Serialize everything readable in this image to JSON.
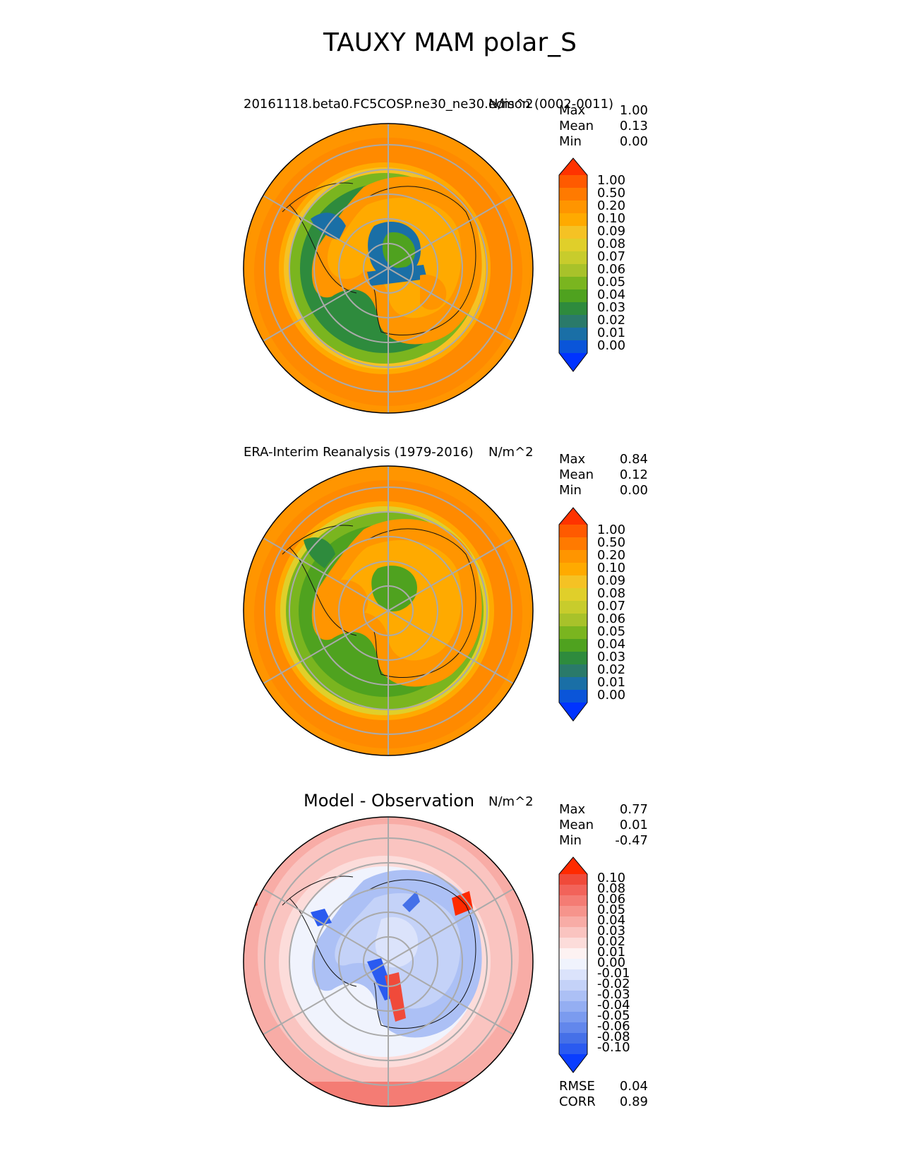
{
  "title": "TAUXY MAM polar_S",
  "panels": [
    {
      "id": "test",
      "title": "20161118.beta0.FC5COSP.ne30_ne30.edison (0002-0011)",
      "units": "N/m^2",
      "stats": [
        {
          "label": "Max",
          "value": "1.00"
        },
        {
          "label": "Mean",
          "value": "0.13"
        },
        {
          "label": "Min",
          "value": "0.00"
        }
      ],
      "colorbar": {
        "ticks": [
          "1.00",
          "0.50",
          "0.20",
          "0.10",
          "0.09",
          "0.08",
          "0.07",
          "0.06",
          "0.05",
          "0.04",
          "0.03",
          "0.02",
          "0.01",
          "0.00"
        ],
        "colors": [
          "#ff3300",
          "#ff5a00",
          "#ff7a00",
          "#ff9500",
          "#ffaa00",
          "#f5c224",
          "#e0cf2a",
          "#c8cc2c",
          "#a8c22a",
          "#7ab51f",
          "#4fa21f",
          "#2e8b3d",
          "#2a7a6a",
          "#1a6fa6",
          "#0a55d9",
          "#0033ff"
        ]
      }
    },
    {
      "id": "reference",
      "title": "ERA-Interim Reanalysis (1979-2016)",
      "units": "N/m^2",
      "stats": [
        {
          "label": "Max",
          "value": "0.84"
        },
        {
          "label": "Mean",
          "value": "0.12"
        },
        {
          "label": "Min",
          "value": "0.00"
        }
      ],
      "colorbar": {
        "ticks": [
          "1.00",
          "0.50",
          "0.20",
          "0.10",
          "0.09",
          "0.08",
          "0.07",
          "0.06",
          "0.05",
          "0.04",
          "0.03",
          "0.02",
          "0.01",
          "0.00"
        ],
        "colors": [
          "#ff3300",
          "#ff5a00",
          "#ff7a00",
          "#ff9500",
          "#ffaa00",
          "#f5c224",
          "#e0cf2a",
          "#c8cc2c",
          "#a8c22a",
          "#7ab51f",
          "#4fa21f",
          "#2e8b3d",
          "#2a7a6a",
          "#1a6fa6",
          "#0a55d9",
          "#0033ff"
        ]
      }
    },
    {
      "id": "diff",
      "title": "Model - Observation",
      "units": "N/m^2",
      "stats": [
        {
          "label": "Max",
          "value": "0.77"
        },
        {
          "label": "Mean",
          "value": "0.01"
        },
        {
          "label": "Min",
          "value": "-0.47"
        }
      ],
      "colorbar": {
        "ticks": [
          "0.10",
          "0.08",
          "0.06",
          "0.05",
          "0.04",
          "0.03",
          "0.02",
          "0.01",
          "0.00",
          "-0.01",
          "-0.02",
          "-0.03",
          "-0.04",
          "-0.05",
          "-0.06",
          "-0.08",
          "-0.10"
        ],
        "colors": [
          "#ff2a00",
          "#f04a3a",
          "#f2635a",
          "#f47c74",
          "#f6948c",
          "#f8aca6",
          "#fac4c0",
          "#fcdcda",
          "#fdf2f2",
          "#f0f3fd",
          "#dbe3fb",
          "#c4d2f8",
          "#acc0f5",
          "#94aef2",
          "#7b9bef",
          "#6287ec",
          "#4570e8",
          "#2a5af0",
          "#0a3dff"
        ]
      },
      "extra_stats": [
        {
          "label": "RMSE",
          "value": "0.04"
        },
        {
          "label": "CORR",
          "value": "0.89"
        }
      ]
    }
  ]
}
